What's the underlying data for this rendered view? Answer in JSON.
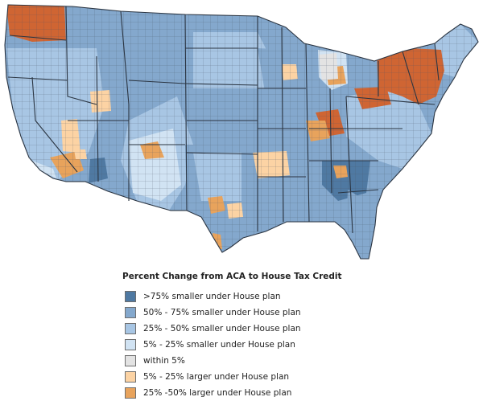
{
  "map": {
    "colors": {
      "smaller_75_plus": "#4f79a2",
      "smaller_50_75": "#84a8cd",
      "smaller_25_50": "#a8c6e4",
      "smaller_5_25": "#d1e3f3",
      "within_5": "#e3e3e3",
      "larger_5_25": "#fcd3a4",
      "larger_25_50": "#e8a35c",
      "larger_50_plus": "#cf6533",
      "county_border": "#4a5565",
      "state_border": "#2b3542"
    }
  },
  "legend": {
    "title": "Percent Change from ACA to House Tax Credit",
    "items": [
      {
        "label": ">75% smaller under House plan",
        "color": "#4f79a2"
      },
      {
        "label": "50% - 75% smaller under House plan",
        "color": "#84a8cd"
      },
      {
        "label": "25% - 50% smaller under House plan",
        "color": "#a8c6e4"
      },
      {
        "label": "5% - 25% smaller under House plan",
        "color": "#d1e3f3"
      },
      {
        "label": "within 5%",
        "color": "#e3e3e3"
      },
      {
        "label": "5% - 25% larger under House plan",
        "color": "#fcd3a4"
      },
      {
        "label": "25% -50% larger under House plan",
        "color": "#e8a35c"
      }
    ]
  }
}
